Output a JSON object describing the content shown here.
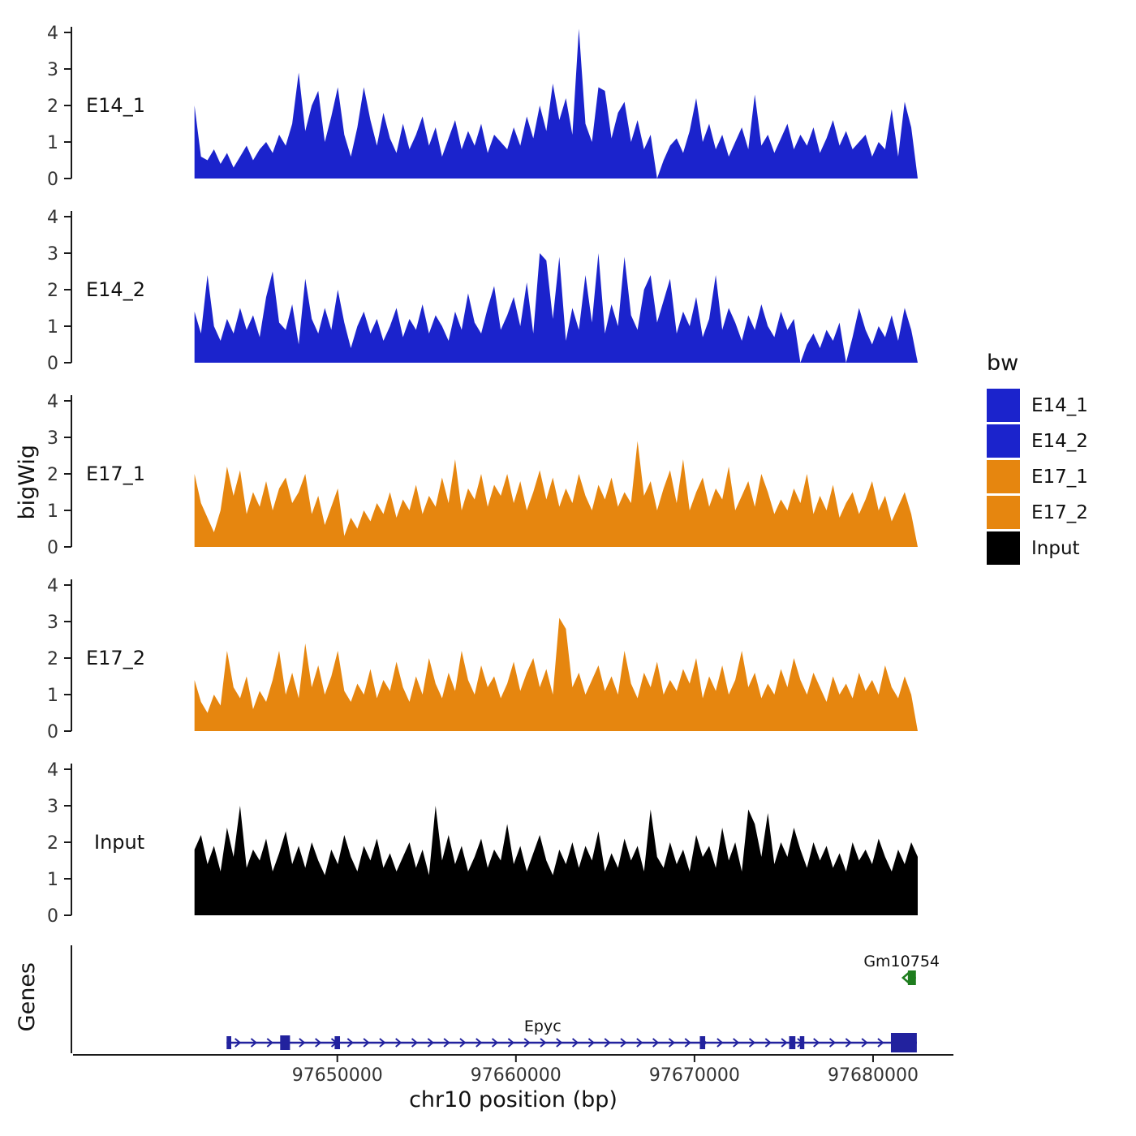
{
  "colors": {
    "E14_1": "#1b23cc",
    "E14_2": "#1b23cc",
    "E17_1": "#e6860f",
    "E17_2": "#e6860f",
    "Input": "#000000",
    "gene_epyc": "#22229e",
    "gene_green": "#1e7d1e",
    "axis": "#1a1a1a",
    "tick_text": "#333333"
  },
  "y_axis": {
    "label": "bigWig",
    "ticks": [
      0,
      1,
      2,
      3,
      4
    ]
  },
  "x_axis": {
    "label": "chr10 position (bp)",
    "ticks": [
      {
        "bp": 97650000,
        "label": "97650000"
      },
      {
        "bp": 97660000,
        "label": "97660000"
      },
      {
        "bp": 97670000,
        "label": "97670000"
      },
      {
        "bp": 97680000,
        "label": "97680000"
      }
    ]
  },
  "genes_panel": {
    "label": "Genes",
    "genes": [
      {
        "name": "Gm10754",
        "color_key": "gene_green",
        "row": 0,
        "strand": "-",
        "start": 97681950,
        "end": 97682400,
        "label_bp": 97681600,
        "exons": [
          {
            "s": 97681950,
            "e": 97682400,
            "h": 18
          }
        ]
      },
      {
        "name": "Epyc",
        "color_key": "gene_epyc",
        "row": 1,
        "strand": "+",
        "start": 97643800,
        "end": 97682450,
        "label_bp": 97661500,
        "exons": [
          {
            "s": 97643800,
            "e": 97644060,
            "h": 16
          },
          {
            "s": 97646800,
            "e": 97647350,
            "h": 18
          },
          {
            "s": 97649850,
            "e": 97650150,
            "h": 16
          },
          {
            "s": 97670300,
            "e": 97670600,
            "h": 16
          },
          {
            "s": 97675300,
            "e": 97675650,
            "h": 16
          },
          {
            "s": 97675900,
            "e": 97676150,
            "h": 16
          },
          {
            "s": 97681000,
            "e": 97682450,
            "h": 24
          }
        ]
      }
    ]
  },
  "legend": {
    "title": "bw",
    "items": [
      {
        "label": "E14_1",
        "color_key": "E14_1"
      },
      {
        "label": "E14_2",
        "color_key": "E14_2"
      },
      {
        "label": "E17_1",
        "color_key": "E17_1"
      },
      {
        "label": "E17_2",
        "color_key": "E17_2"
      },
      {
        "label": "Input",
        "color_key": "Input"
      }
    ]
  },
  "chart_data": {
    "type": "area",
    "xlabel": "chr10 position (bp)",
    "ylabel": "bigWig",
    "x_domain": [
      97635200,
      97684500
    ],
    "x_ticks": [
      97650000,
      97660000,
      97670000,
      97680000
    ],
    "y_ticks": [
      0,
      1,
      2,
      3,
      4
    ],
    "tracks": [
      {
        "label": "E14_1",
        "color_key": "E14_1",
        "start": 97642000,
        "end": 97682500,
        "ylim": [
          0,
          4.3
        ],
        "values": [
          2.0,
          0.6,
          0.5,
          0.8,
          0.4,
          0.7,
          0.3,
          0.6,
          0.9,
          0.5,
          0.8,
          1.0,
          0.7,
          1.2,
          0.9,
          1.5,
          2.9,
          1.3,
          2.0,
          2.4,
          1.0,
          1.7,
          2.5,
          1.2,
          0.6,
          1.4,
          2.5,
          1.6,
          0.9,
          1.8,
          1.1,
          0.7,
          1.5,
          0.8,
          1.2,
          1.7,
          0.9,
          1.4,
          0.6,
          1.1,
          1.6,
          0.8,
          1.3,
          0.9,
          1.5,
          0.7,
          1.2,
          1.0,
          0.8,
          1.4,
          0.9,
          1.7,
          1.1,
          2.0,
          1.3,
          2.6,
          1.6,
          2.2,
          1.2,
          4.1,
          1.5,
          1.0,
          2.5,
          2.4,
          1.1,
          1.8,
          2.1,
          1.0,
          1.6,
          0.8,
          1.2,
          0.0,
          0.5,
          0.9,
          1.1,
          0.7,
          1.3,
          2.2,
          1.0,
          1.5,
          0.8,
          1.2,
          0.6,
          1.0,
          1.4,
          0.8,
          2.3,
          0.9,
          1.2,
          0.7,
          1.1,
          1.5,
          0.8,
          1.2,
          0.9,
          1.4,
          0.7,
          1.1,
          1.6,
          0.9,
          1.3,
          0.8,
          1.0,
          1.2,
          0.6,
          1.0,
          0.8,
          1.9,
          0.6,
          2.1,
          1.4,
          0.0
        ]
      },
      {
        "label": "E14_2",
        "color_key": "E14_2",
        "start": 97642000,
        "end": 97682500,
        "ylim": [
          0,
          4.3
        ],
        "values": [
          1.4,
          0.8,
          2.4,
          1.0,
          0.6,
          1.2,
          0.8,
          1.5,
          0.9,
          1.3,
          0.7,
          1.8,
          2.5,
          1.1,
          0.9,
          1.6,
          0.5,
          2.3,
          1.2,
          0.8,
          1.5,
          0.9,
          2.0,
          1.1,
          0.4,
          1.0,
          1.4,
          0.8,
          1.2,
          0.6,
          1.0,
          1.5,
          0.7,
          1.2,
          0.9,
          1.6,
          0.8,
          1.3,
          1.0,
          0.6,
          1.4,
          0.9,
          1.9,
          1.1,
          0.8,
          1.5,
          2.1,
          0.9,
          1.3,
          1.8,
          1.0,
          2.2,
          0.8,
          3.0,
          2.8,
          1.2,
          2.9,
          0.6,
          1.5,
          0.9,
          2.4,
          1.1,
          3.0,
          0.8,
          1.6,
          1.0,
          2.9,
          1.3,
          0.9,
          2.0,
          2.4,
          1.1,
          1.7,
          2.3,
          0.8,
          1.4,
          1.0,
          1.8,
          0.7,
          1.2,
          2.4,
          0.9,
          1.5,
          1.1,
          0.6,
          1.3,
          0.9,
          1.6,
          1.0,
          0.7,
          1.4,
          0.9,
          1.2,
          0.0,
          0.5,
          0.8,
          0.4,
          0.9,
          0.6,
          1.1,
          0.0,
          0.7,
          1.5,
          0.9,
          0.5,
          1.0,
          0.7,
          1.3,
          0.6,
          1.5,
          0.9,
          0.0
        ]
      },
      {
        "label": "E17_1",
        "color_key": "E17_1",
        "start": 97642000,
        "end": 97682500,
        "ylim": [
          0,
          4.3
        ],
        "values": [
          2.0,
          1.2,
          0.8,
          0.4,
          1.0,
          2.2,
          1.4,
          2.1,
          0.9,
          1.5,
          1.1,
          1.8,
          1.0,
          1.6,
          1.9,
          1.2,
          1.5,
          2.0,
          0.9,
          1.4,
          0.6,
          1.1,
          1.6,
          0.3,
          0.8,
          0.5,
          1.0,
          0.7,
          1.2,
          0.9,
          1.5,
          0.8,
          1.3,
          1.0,
          1.7,
          0.9,
          1.4,
          1.1,
          1.9,
          1.2,
          2.4,
          1.0,
          1.6,
          1.3,
          2.0,
          1.1,
          1.7,
          1.4,
          2.0,
          1.2,
          1.8,
          1.0,
          1.5,
          2.1,
          1.3,
          1.9,
          1.1,
          1.6,
          1.2,
          2.0,
          1.4,
          1.0,
          1.7,
          1.3,
          1.9,
          1.1,
          1.5,
          1.2,
          2.9,
          1.4,
          1.8,
          1.0,
          1.6,
          2.1,
          1.2,
          2.4,
          1.0,
          1.5,
          1.9,
          1.1,
          1.6,
          1.3,
          2.2,
          1.0,
          1.4,
          1.8,
          1.1,
          2.0,
          1.5,
          0.9,
          1.3,
          1.0,
          1.6,
          1.2,
          2.0,
          0.9,
          1.4,
          1.0,
          1.7,
          0.8,
          1.2,
          1.5,
          0.9,
          1.3,
          1.8,
          1.0,
          1.4,
          0.7,
          1.1,
          1.5,
          0.9,
          0.0
        ]
      },
      {
        "label": "E17_2",
        "color_key": "E17_2",
        "start": 97642000,
        "end": 97682500,
        "ylim": [
          0,
          4.3
        ],
        "values": [
          1.4,
          0.8,
          0.5,
          1.0,
          0.7,
          2.2,
          1.2,
          0.9,
          1.5,
          0.6,
          1.1,
          0.8,
          1.4,
          2.2,
          1.0,
          1.6,
          0.9,
          2.4,
          1.2,
          1.8,
          1.0,
          1.5,
          2.2,
          1.1,
          0.8,
          1.3,
          1.0,
          1.7,
          0.9,
          1.4,
          1.1,
          1.9,
          1.2,
          0.8,
          1.5,
          1.0,
          2.0,
          1.3,
          0.9,
          1.6,
          1.1,
          2.2,
          1.4,
          1.0,
          1.8,
          1.2,
          1.5,
          0.9,
          1.3,
          1.9,
          1.1,
          1.6,
          2.0,
          1.2,
          1.7,
          1.0,
          3.1,
          2.8,
          1.2,
          1.6,
          1.0,
          1.4,
          1.8,
          1.1,
          1.5,
          1.0,
          2.2,
          1.3,
          0.9,
          1.6,
          1.2,
          1.9,
          1.0,
          1.4,
          1.1,
          1.7,
          1.3,
          2.0,
          0.9,
          1.5,
          1.1,
          1.8,
          1.0,
          1.4,
          2.2,
          1.2,
          1.6,
          0.9,
          1.3,
          1.0,
          1.7,
          1.2,
          2.0,
          1.4,
          1.0,
          1.6,
          1.2,
          0.8,
          1.5,
          1.0,
          1.3,
          0.9,
          1.6,
          1.1,
          1.4,
          1.0,
          1.8,
          1.2,
          0.9,
          1.5,
          1.0,
          0.0
        ]
      },
      {
        "label": "Input",
        "color_key": "Input",
        "start": 97642000,
        "end": 97682500,
        "ylim": [
          0,
          4.3
        ],
        "values": [
          1.8,
          2.2,
          1.4,
          1.9,
          1.2,
          2.4,
          1.6,
          3.0,
          1.3,
          1.8,
          1.5,
          2.1,
          1.2,
          1.7,
          2.3,
          1.4,
          1.9,
          1.3,
          2.0,
          1.5,
          1.1,
          1.8,
          1.4,
          2.2,
          1.6,
          1.2,
          1.9,
          1.5,
          2.1,
          1.3,
          1.7,
          1.2,
          1.6,
          2.0,
          1.3,
          1.8,
          1.1,
          3.0,
          1.5,
          2.2,
          1.4,
          1.9,
          1.2,
          1.6,
          2.1,
          1.3,
          1.8,
          1.5,
          2.5,
          1.4,
          1.9,
          1.2,
          1.7,
          2.2,
          1.5,
          1.1,
          1.8,
          1.4,
          2.0,
          1.3,
          1.9,
          1.5,
          2.3,
          1.2,
          1.7,
          1.3,
          2.1,
          1.5,
          1.9,
          1.2,
          2.9,
          1.6,
          1.3,
          2.0,
          1.4,
          1.8,
          1.2,
          2.2,
          1.6,
          1.9,
          1.3,
          2.4,
          1.5,
          2.0,
          1.2,
          2.9,
          2.5,
          1.6,
          2.8,
          1.4,
          2.0,
          1.6,
          2.4,
          1.8,
          1.3,
          2.0,
          1.5,
          1.9,
          1.3,
          1.7,
          1.2,
          2.0,
          1.5,
          1.8,
          1.4,
          2.1,
          1.6,
          1.2,
          1.8,
          1.4,
          2.0,
          1.6
        ]
      }
    ]
  }
}
